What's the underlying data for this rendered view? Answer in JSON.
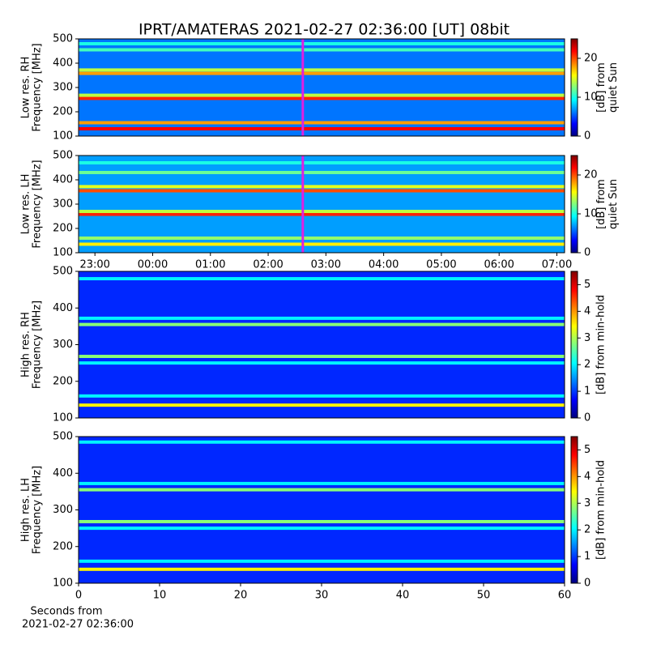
{
  "chart_data": [
    {
      "type": "heatmap",
      "title": "IPRT/AMATERAS 2021-02-27 02:36:00 [UT]   08bit",
      "ylabel": [
        "Low res. RH",
        "Frequency [MHz]"
      ],
      "colorbar_label": [
        "[dB] from",
        "quiet Sun"
      ],
      "xlim": [
        "22:43",
        "07:08"
      ],
      "ylim": [
        100,
        500
      ],
      "yticks": [
        100,
        200,
        300,
        400,
        500
      ],
      "clim": [
        0,
        25
      ],
      "cticks": [
        0,
        10,
        20
      ],
      "marker_x": "02:36",
      "marker_color": "#e020e0",
      "background_level": 6,
      "bands": [
        {
          "freq": 130,
          "level": 22
        },
        {
          "freq": 155,
          "level": 18
        },
        {
          "freq": 255,
          "level": 21
        },
        {
          "freq": 268,
          "level": 14
        },
        {
          "freq": 358,
          "level": 18
        },
        {
          "freq": 372,
          "level": 14
        },
        {
          "freq": 455,
          "level": 11
        },
        {
          "freq": 480,
          "level": 10
        }
      ]
    },
    {
      "type": "heatmap",
      "ylabel": [
        "Low res. LH",
        "Frequency [MHz]"
      ],
      "colorbar_label": [
        "[dB] from",
        "quiet Sun"
      ],
      "xlim": [
        "22:43",
        "07:08"
      ],
      "xticks": [
        "23:00",
        "00:00",
        "01:00",
        "02:00",
        "03:00",
        "04:00",
        "05:00",
        "06:00",
        "07:00"
      ],
      "ylim": [
        100,
        500
      ],
      "yticks": [
        100,
        200,
        300,
        400,
        500
      ],
      "clim": [
        0,
        25
      ],
      "cticks": [
        0,
        10,
        20
      ],
      "marker_x": "02:36",
      "marker_color": "#e020e0",
      "background_level": 7,
      "bands": [
        {
          "freq": 135,
          "level": 16
        },
        {
          "freq": 160,
          "level": 13
        },
        {
          "freq": 258,
          "level": 21
        },
        {
          "freq": 270,
          "level": 14
        },
        {
          "freq": 355,
          "level": 20
        },
        {
          "freq": 372,
          "level": 15
        },
        {
          "freq": 430,
          "level": 12
        },
        {
          "freq": 470,
          "level": 10
        }
      ]
    },
    {
      "type": "heatmap",
      "ylabel": [
        "High res. RH",
        "Frequency [MHz]"
      ],
      "colorbar_label": [
        "[dB] from min-hold"
      ],
      "xlim": [
        0,
        60
      ],
      "ylim": [
        100,
        500
      ],
      "yticks": [
        100,
        200,
        300,
        400,
        500
      ],
      "clim": [
        0,
        5.5
      ],
      "cticks": [
        0,
        1,
        2,
        3,
        4,
        5
      ],
      "background_level": 0.9,
      "bands": [
        {
          "freq": 135,
          "level": 3.5
        },
        {
          "freq": 160,
          "level": 2
        },
        {
          "freq": 250,
          "level": 2
        },
        {
          "freq": 268,
          "level": 2.8
        },
        {
          "freq": 355,
          "level": 2.8
        },
        {
          "freq": 372,
          "level": 2
        },
        {
          "freq": 480,
          "level": 2
        }
      ]
    },
    {
      "type": "heatmap",
      "ylabel": [
        "High res. LH",
        "Frequency [MHz]"
      ],
      "colorbar_label": [
        "[dB] from min-hold"
      ],
      "xlim": [
        0,
        60
      ],
      "xticks": [
        0,
        10,
        20,
        30,
        40,
        50,
        60
      ],
      "xlabel": [
        "Seconds from",
        "2021-02-27 02:36:00"
      ],
      "ylim": [
        100,
        500
      ],
      "yticks": [
        100,
        200,
        300,
        400,
        500
      ],
      "clim": [
        0,
        5.5
      ],
      "cticks": [
        0,
        1,
        2,
        3,
        4,
        5
      ],
      "background_level": 0.9,
      "bands": [
        {
          "freq": 138,
          "level": 3.5
        },
        {
          "freq": 160,
          "level": 2
        },
        {
          "freq": 250,
          "level": 2
        },
        {
          "freq": 268,
          "level": 2.8
        },
        {
          "freq": 355,
          "level": 2.8
        },
        {
          "freq": 372,
          "level": 2
        },
        {
          "freq": 485,
          "level": 2
        }
      ]
    }
  ]
}
